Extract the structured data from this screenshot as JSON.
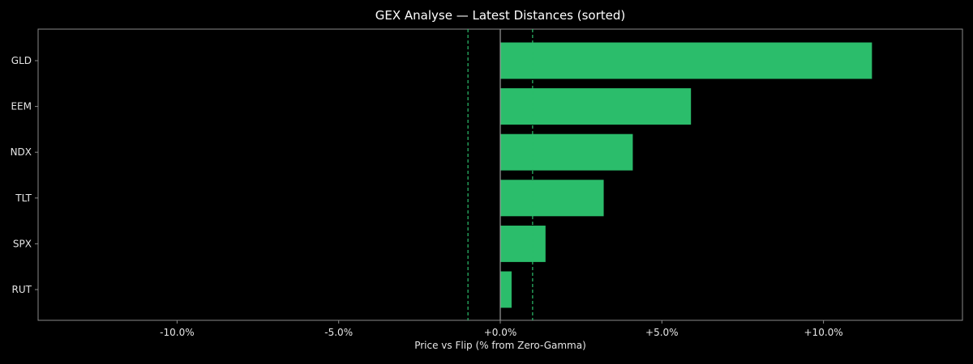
{
  "chart_data": {
    "type": "bar",
    "orientation": "horizontal",
    "title": "GEX Analyse — Latest Distances (sorted)",
    "xlabel": "Price vs Flip (% from Zero-Gamma)",
    "ylabel": "",
    "xlim": [
      -14.3,
      14.3
    ],
    "xticks": [
      -10,
      -5,
      0,
      5,
      10
    ],
    "xtick_labels": [
      "-10.0%",
      "-5.0%",
      "+0.0%",
      "+5.0%",
      "+10.0%"
    ],
    "categories": [
      "GLD",
      "EEM",
      "NDX",
      "TLT",
      "SPX",
      "RUT"
    ],
    "values": [
      11.5,
      5.9,
      4.1,
      3.2,
      1.4,
      0.35
    ],
    "reference_lines": {
      "solid": [
        0
      ],
      "dashed": [
        -1,
        1
      ]
    },
    "grid": false,
    "legend": "none",
    "colors": {
      "background": "#000000",
      "bar": "#2bbd6b",
      "dashed_line": "#2bbd6b",
      "zero_line": "#9a9a9a",
      "axes": "#8a8a8a",
      "text": "#e6e6e6"
    }
  }
}
